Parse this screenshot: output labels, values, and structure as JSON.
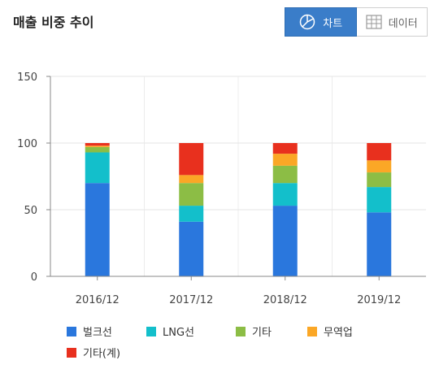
{
  "header": {
    "title": "매출 비중 추이"
  },
  "toggle": {
    "chart_label": "차트",
    "data_label": "데이터",
    "chart_icon": "pie-chart-icon",
    "data_icon": "table-grid-icon"
  },
  "chart_data": {
    "type": "bar",
    "stacked": true,
    "categories": [
      "2016/12",
      "2017/12",
      "2018/12",
      "2019/12"
    ],
    "ylim": [
      0,
      150
    ],
    "yticks": [
      0,
      50,
      100,
      150
    ],
    "grid": true,
    "legend_position": "bottom",
    "series": [
      {
        "name": "벌크선",
        "color": "#2a77dd",
        "values": [
          70,
          41,
          53,
          48
        ]
      },
      {
        "name": "LNG선",
        "color": "#13bfcb",
        "values": [
          23,
          12,
          17,
          19
        ]
      },
      {
        "name": "기타",
        "color": "#8cbd45",
        "values": [
          4,
          17,
          13,
          11
        ]
      },
      {
        "name": "무역업",
        "color": "#fba726",
        "values": [
          1,
          6,
          9,
          9
        ]
      },
      {
        "name": "기타(계)",
        "color": "#e8301e",
        "values": [
          2,
          24,
          8,
          13
        ]
      }
    ]
  }
}
